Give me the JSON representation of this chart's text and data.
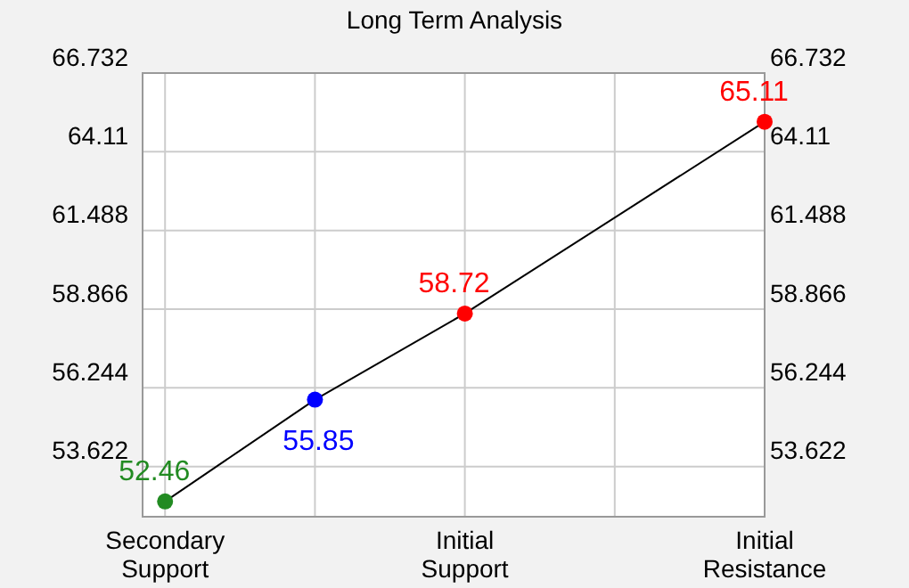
{
  "chart_data": {
    "type": "line",
    "title": "Long Term Analysis",
    "categories": [
      "Secondary Support",
      null,
      "Initial Support",
      null,
      "Initial Resistance"
    ],
    "series": [
      {
        "color": "#000000",
        "colors": [
          "#228b22",
          "#0000ff",
          "#ff0000",
          null,
          "#ff0000"
        ],
        "values": [
          52.46,
          55.85,
          58.72,
          null,
          65.11
        ]
      }
    ],
    "data_labels": true,
    "marker": "circle",
    "ylim": [
      51.95,
      66.732
    ],
    "yticks": [
      53.622,
      56.244,
      58.866,
      61.488,
      64.11,
      66.732
    ],
    "y2lim": [
      51.95,
      66.732
    ],
    "y2ticks": [
      53.622,
      56.244,
      58.866,
      61.488,
      64.11,
      66.732
    ],
    "grid": true
  }
}
